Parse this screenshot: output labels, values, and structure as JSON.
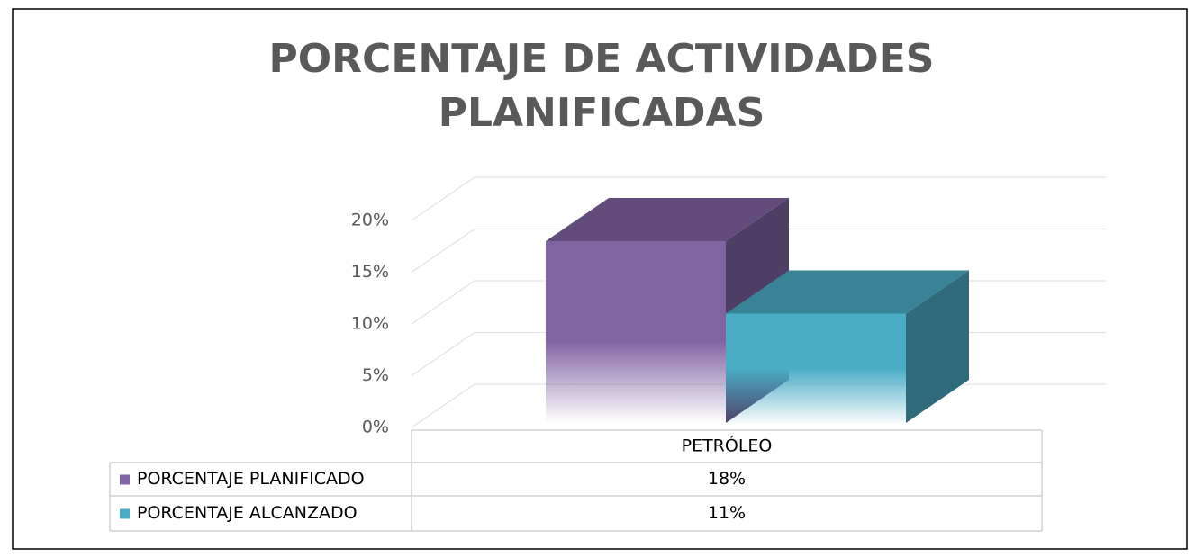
{
  "chart_data": {
    "type": "bar3d",
    "title": "PORCENTAJE DE ACTIVIDADES PLANIFICADAS",
    "categories": [
      "PETRÓLEO"
    ],
    "series": [
      {
        "name": "PORCENTAJE PLANIFICADO",
        "color": "#8064a2",
        "values": [
          18
        ],
        "value_labels": [
          "18%"
        ]
      },
      {
        "name": "PORCENTAJE ALCANZADO",
        "color": "#4bacc6",
        "values": [
          11
        ],
        "value_labels": [
          "11%"
        ]
      }
    ],
    "ylim": [
      0,
      20
    ],
    "yticks": [
      {
        "value": 0,
        "label": "0%"
      },
      {
        "value": 5,
        "label": "5%"
      },
      {
        "value": 10,
        "label": "10%"
      },
      {
        "value": 15,
        "label": "15%"
      },
      {
        "value": 20,
        "label": "20%"
      }
    ],
    "grid": true
  }
}
